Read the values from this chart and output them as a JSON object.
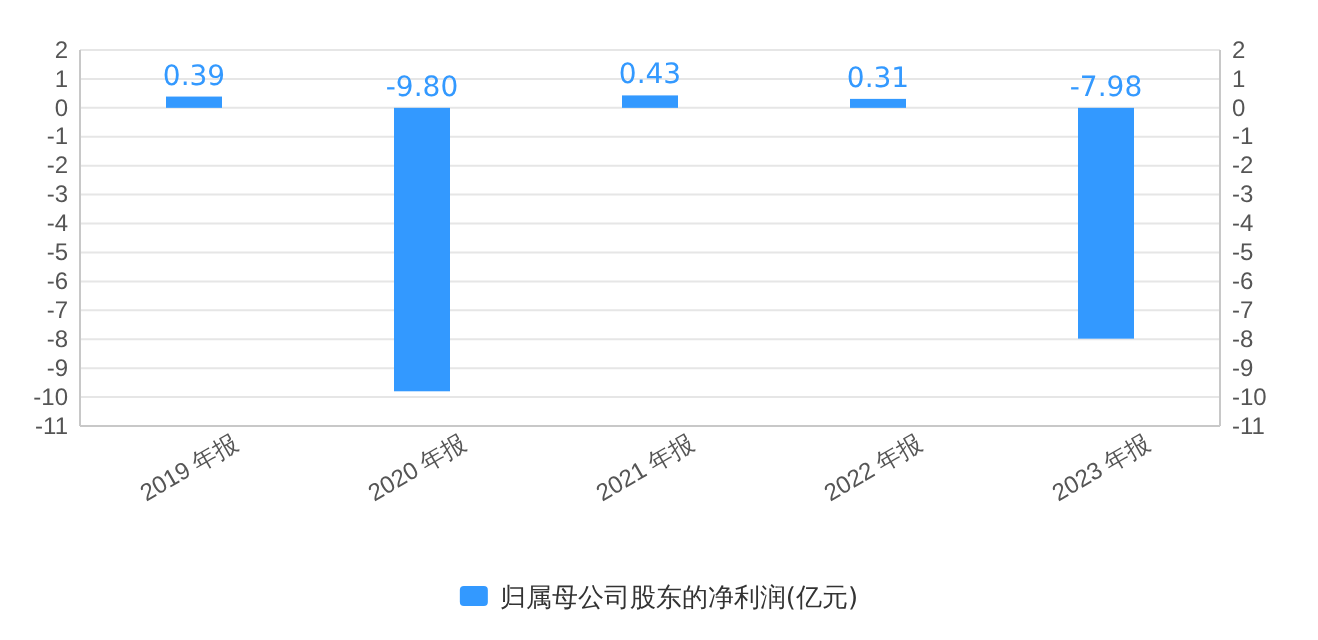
{
  "chart_data": {
    "type": "bar",
    "categories": [
      "2019 年报",
      "2020 年报",
      "2021 年报",
      "2022 年报",
      "2023 年报"
    ],
    "series": [
      {
        "name": "归属母公司股东的净利润(亿元)",
        "color": "#3399ff",
        "values": [
          0.39,
          -9.8,
          0.43,
          0.31,
          -7.98
        ]
      }
    ],
    "value_labels": [
      "0.39",
      "-9.80",
      "0.43",
      "0.31",
      "-7.98"
    ],
    "ylim": [
      -11,
      2
    ],
    "yticks": [
      -11,
      -10,
      -9,
      -8,
      -7,
      -6,
      -5,
      -4,
      -3,
      -2,
      -1,
      0,
      1,
      2
    ],
    "y2lim": [
      -11,
      2
    ],
    "y2ticks": [
      -11,
      -10,
      -9,
      -8,
      -7,
      -6,
      -5,
      -4,
      -3,
      -2,
      -1,
      0,
      1,
      2
    ],
    "grid": "y",
    "legend": "bottom"
  }
}
